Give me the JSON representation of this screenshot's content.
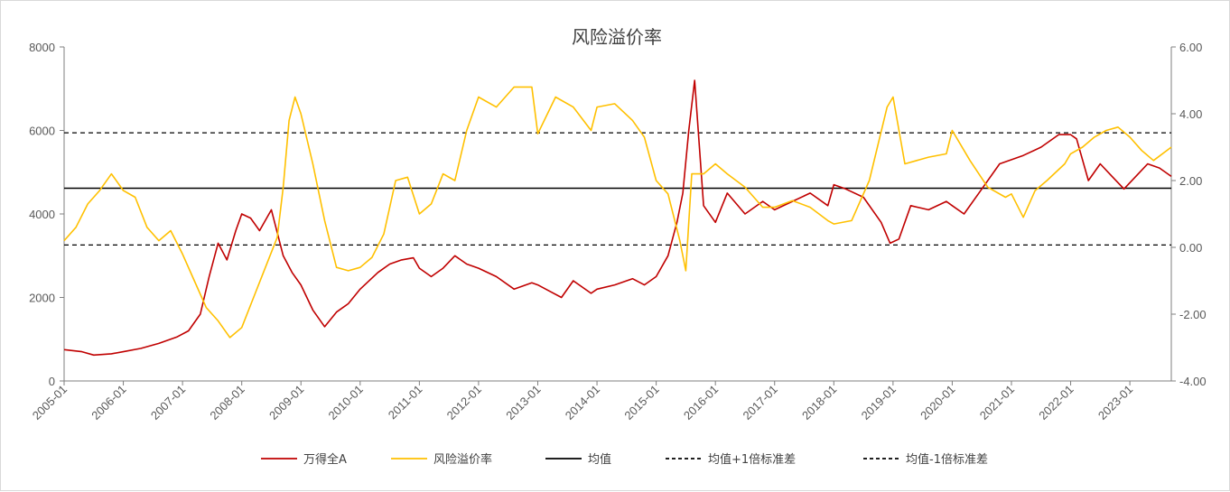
{
  "chart_data": {
    "type": "line",
    "title": "风险溢价率",
    "xlabel": "",
    "ylabel": "",
    "x_ticks": [
      "2005-01",
      "2006-01",
      "2007-01",
      "2008-01",
      "2009-01",
      "2010-01",
      "2011-01",
      "2012-01",
      "2013-01",
      "2014-01",
      "2015-01",
      "2016-01",
      "2017-01",
      "2018-01",
      "2019-01",
      "2020-01",
      "2021-01",
      "2022-01",
      "2023-01"
    ],
    "y_left": {
      "ticks": [
        "0",
        "2000",
        "4000",
        "6000",
        "8000"
      ],
      "range": [
        0,
        8000
      ]
    },
    "y_right": {
      "ticks": [
        "-4.00",
        "-2.00",
        "0.00",
        "2.00",
        "4.00",
        "6.00"
      ],
      "range": [
        -4,
        6
      ]
    },
    "x_range": [
      2005.0,
      2023.7
    ],
    "grid": false,
    "legend_position": "bottom",
    "legend": [
      {
        "label": "万得全A",
        "style": "solid",
        "color": "#c00000"
      },
      {
        "label": "风险溢价率",
        "style": "solid",
        "color": "#ffc000"
      },
      {
        "label": "均值",
        "style": "solid",
        "color": "#000000"
      },
      {
        "label": "均值+1倍标准差",
        "style": "dashed",
        "color": "#000000"
      },
      {
        "label": "均值-1倍标准差",
        "style": "dashed",
        "color": "#000000"
      }
    ],
    "reference_lines": {
      "mean": 1.77,
      "mean_plus_1sd": 3.43,
      "mean_minus_1sd": 0.07
    },
    "series": [
      {
        "name": "万得全A",
        "axis": "left",
        "color": "#c00000",
        "x": [
          2005.0,
          2005.3,
          2005.5,
          2005.8,
          2006.0,
          2006.3,
          2006.6,
          2006.9,
          2007.1,
          2007.3,
          2007.45,
          2007.6,
          2007.75,
          2007.9,
          2008.0,
          2008.15,
          2008.3,
          2008.5,
          2008.7,
          2008.85,
          2009.0,
          2009.2,
          2009.4,
          2009.6,
          2009.8,
          2010.0,
          2010.3,
          2010.5,
          2010.7,
          2010.9,
          2011.0,
          2011.2,
          2011.4,
          2011.6,
          2011.8,
          2012.0,
          2012.3,
          2012.6,
          2012.9,
          2013.0,
          2013.2,
          2013.4,
          2013.6,
          2013.9,
          2014.0,
          2014.3,
          2014.6,
          2014.8,
          2015.0,
          2015.2,
          2015.35,
          2015.45,
          2015.55,
          2015.65,
          2015.8,
          2016.0,
          2016.2,
          2016.5,
          2016.8,
          2017.0,
          2017.3,
          2017.6,
          2017.9,
          2018.0,
          2018.2,
          2018.5,
          2018.8,
          2018.95,
          2019.1,
          2019.3,
          2019.6,
          2019.9,
          2020.0,
          2020.2,
          2020.5,
          2020.8,
          2021.0,
          2021.2,
          2021.5,
          2021.8,
          2022.0,
          2022.1,
          2022.3,
          2022.5,
          2022.7,
          2022.9,
          2023.1,
          2023.3,
          2023.5,
          2023.7
        ],
        "values": [
          750,
          700,
          620,
          650,
          700,
          780,
          900,
          1050,
          1200,
          1600,
          2500,
          3300,
          2900,
          3600,
          4000,
          3900,
          3600,
          4100,
          3000,
          2600,
          2300,
          1700,
          1300,
          1650,
          1850,
          2200,
          2600,
          2800,
          2900,
          2950,
          2700,
          2500,
          2700,
          3000,
          2800,
          2700,
          2500,
          2200,
          2350,
          2300,
          2150,
          2000,
          2400,
          2100,
          2200,
          2300,
          2450,
          2300,
          2500,
          3000,
          3800,
          4500,
          6000,
          7200,
          4200,
          3800,
          4500,
          4000,
          4300,
          4100,
          4300,
          4500,
          4200,
          4700,
          4600,
          4400,
          3800,
          3300,
          3400,
          4200,
          4100,
          4300,
          4200,
          4000,
          4600,
          5200,
          5300,
          5400,
          5600,
          5900,
          5900,
          5800,
          4800,
          5200,
          4900,
          4600,
          4900,
          5200,
          5100,
          4900
        ]
      },
      {
        "name": "风险溢价率",
        "axis": "right",
        "color": "#ffc000",
        "x": [
          2005.0,
          2005.2,
          2005.4,
          2005.6,
          2005.8,
          2006.0,
          2006.2,
          2006.4,
          2006.6,
          2006.8,
          2007.0,
          2007.2,
          2007.4,
          2007.6,
          2007.8,
          2008.0,
          2008.2,
          2008.4,
          2008.6,
          2008.7,
          2008.8,
          2008.9,
          2009.0,
          2009.2,
          2009.4,
          2009.6,
          2009.8,
          2010.0,
          2010.2,
          2010.4,
          2010.6,
          2010.8,
          2011.0,
          2011.2,
          2011.4,
          2011.6,
          2011.8,
          2012.0,
          2012.3,
          2012.6,
          2012.9,
          2013.0,
          2013.3,
          2013.6,
          2013.9,
          2014.0,
          2014.3,
          2014.6,
          2014.8,
          2015.0,
          2015.2,
          2015.4,
          2015.5,
          2015.6,
          2015.8,
          2016.0,
          2016.2,
          2016.5,
          2016.8,
          2017.0,
          2017.3,
          2017.6,
          2017.9,
          2018.0,
          2018.3,
          2018.6,
          2018.9,
          2019.0,
          2019.2,
          2019.4,
          2019.6,
          2019.9,
          2020.0,
          2020.3,
          2020.6,
          2020.9,
          2021.0,
          2021.2,
          2021.4,
          2021.6,
          2021.9,
          2022.0,
          2022.2,
          2022.4,
          2022.6,
          2022.8,
          2023.0,
          2023.2,
          2023.4,
          2023.7
        ],
        "values": [
          0.2,
          0.6,
          1.3,
          1.7,
          2.2,
          1.7,
          1.5,
          0.6,
          0.2,
          0.5,
          -0.2,
          -1.0,
          -1.8,
          -2.2,
          -2.7,
          -2.4,
          -1.5,
          -0.6,
          0.3,
          1.8,
          3.8,
          4.5,
          4.0,
          2.5,
          0.8,
          -0.6,
          -0.7,
          -0.6,
          -0.3,
          0.4,
          2.0,
          2.1,
          1.0,
          1.3,
          2.2,
          2.0,
          3.5,
          4.5,
          4.2,
          4.8,
          4.8,
          3.4,
          4.5,
          4.2,
          3.5,
          4.2,
          4.3,
          3.8,
          3.3,
          2.0,
          1.6,
          0.2,
          -0.7,
          2.2,
          2.2,
          2.5,
          2.2,
          1.8,
          1.2,
          1.2,
          1.4,
          1.2,
          0.8,
          0.7,
          0.8,
          2.0,
          4.2,
          4.5,
          2.5,
          2.6,
          2.7,
          2.8,
          3.5,
          2.6,
          1.8,
          1.5,
          1.6,
          0.9,
          1.7,
          2.0,
          2.5,
          2.8,
          3.0,
          3.3,
          3.5,
          3.6,
          3.3,
          2.9,
          2.6,
          3.0
        ]
      }
    ]
  }
}
